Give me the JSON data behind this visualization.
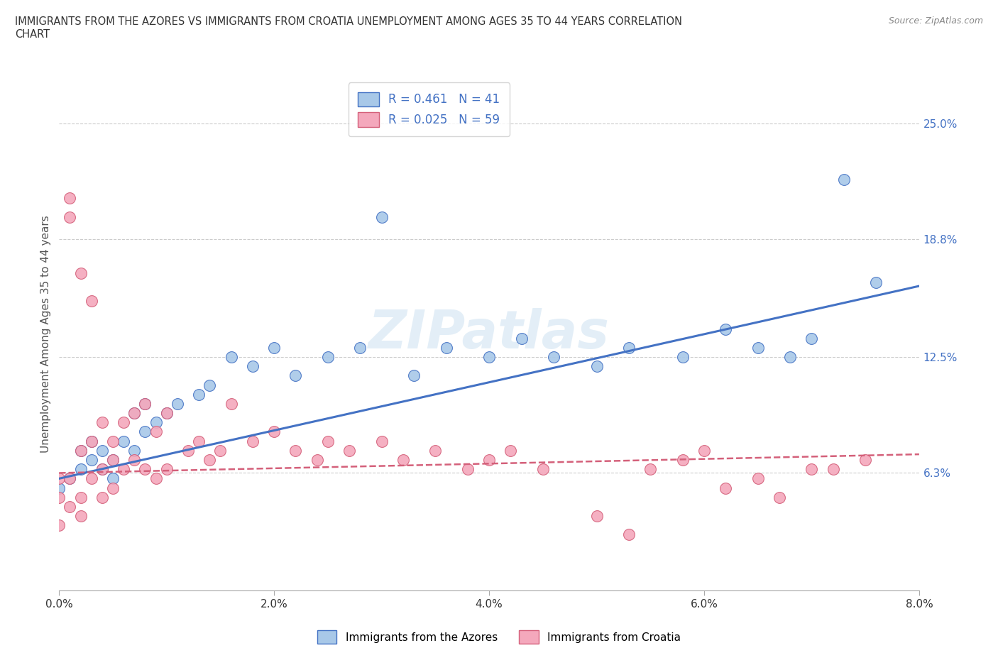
{
  "title": "IMMIGRANTS FROM THE AZORES VS IMMIGRANTS FROM CROATIA UNEMPLOYMENT AMONG AGES 35 TO 44 YEARS CORRELATION\nCHART",
  "source_text": "Source: ZipAtlas.com",
  "ylabel": "Unemployment Among Ages 35 to 44 years",
  "xlim": [
    0.0,
    0.08
  ],
  "ylim": [
    0.0,
    0.275
  ],
  "xtick_labels": [
    "0.0%",
    "2.0%",
    "4.0%",
    "6.0%",
    "8.0%"
  ],
  "xtick_vals": [
    0.0,
    0.02,
    0.04,
    0.06,
    0.08
  ],
  "ytick_labels": [
    "6.3%",
    "12.5%",
    "18.8%",
    "25.0%"
  ],
  "ytick_vals": [
    0.063,
    0.125,
    0.188,
    0.25
  ],
  "watermark": "ZIPatlas",
  "color_azores": "#a8c8e8",
  "color_croatia": "#f4a8bc",
  "trend_color_azores": "#4472c4",
  "trend_color_croatia": "#d4607a",
  "azores_x": [
    0.0,
    0.001,
    0.002,
    0.002,
    0.003,
    0.003,
    0.004,
    0.004,
    0.005,
    0.005,
    0.006,
    0.007,
    0.007,
    0.008,
    0.008,
    0.009,
    0.01,
    0.011,
    0.013,
    0.014,
    0.016,
    0.018,
    0.02,
    0.022,
    0.025,
    0.028,
    0.03,
    0.033,
    0.036,
    0.04,
    0.043,
    0.046,
    0.05,
    0.053,
    0.058,
    0.062,
    0.065,
    0.068,
    0.07,
    0.073,
    0.076
  ],
  "azores_y": [
    0.055,
    0.06,
    0.065,
    0.075,
    0.07,
    0.08,
    0.065,
    0.075,
    0.06,
    0.07,
    0.08,
    0.075,
    0.095,
    0.085,
    0.1,
    0.09,
    0.095,
    0.1,
    0.105,
    0.11,
    0.125,
    0.12,
    0.13,
    0.115,
    0.125,
    0.13,
    0.2,
    0.115,
    0.13,
    0.125,
    0.135,
    0.125,
    0.12,
    0.13,
    0.125,
    0.14,
    0.13,
    0.125,
    0.135,
    0.22,
    0.165
  ],
  "croatia_x": [
    0.0,
    0.0,
    0.0,
    0.001,
    0.001,
    0.001,
    0.001,
    0.002,
    0.002,
    0.002,
    0.002,
    0.003,
    0.003,
    0.003,
    0.004,
    0.004,
    0.004,
    0.005,
    0.005,
    0.005,
    0.006,
    0.006,
    0.007,
    0.007,
    0.008,
    0.008,
    0.009,
    0.009,
    0.01,
    0.01,
    0.012,
    0.013,
    0.014,
    0.015,
    0.016,
    0.018,
    0.02,
    0.022,
    0.024,
    0.025,
    0.027,
    0.03,
    0.032,
    0.035,
    0.038,
    0.04,
    0.042,
    0.045,
    0.05,
    0.053,
    0.055,
    0.058,
    0.06,
    0.062,
    0.065,
    0.067,
    0.07,
    0.072,
    0.075
  ],
  "croatia_y": [
    0.05,
    0.06,
    0.035,
    0.21,
    0.2,
    0.06,
    0.045,
    0.17,
    0.075,
    0.05,
    0.04,
    0.155,
    0.08,
    0.06,
    0.09,
    0.065,
    0.05,
    0.08,
    0.07,
    0.055,
    0.09,
    0.065,
    0.095,
    0.07,
    0.1,
    0.065,
    0.085,
    0.06,
    0.095,
    0.065,
    0.075,
    0.08,
    0.07,
    0.075,
    0.1,
    0.08,
    0.085,
    0.075,
    0.07,
    0.08,
    0.075,
    0.08,
    0.07,
    0.075,
    0.065,
    0.07,
    0.075,
    0.065,
    0.04,
    0.03,
    0.065,
    0.07,
    0.075,
    0.055,
    0.06,
    0.05,
    0.065,
    0.065,
    0.07
  ],
  "azores_trend_x0": 0.0,
  "azores_trend_y0": 0.06,
  "azores_trend_x1": 0.08,
  "azores_trend_y1": 0.163,
  "croatia_trend_x0": 0.0,
  "croatia_trend_y0": 0.063,
  "croatia_trend_x1": 0.08,
  "croatia_trend_y1": 0.073
}
